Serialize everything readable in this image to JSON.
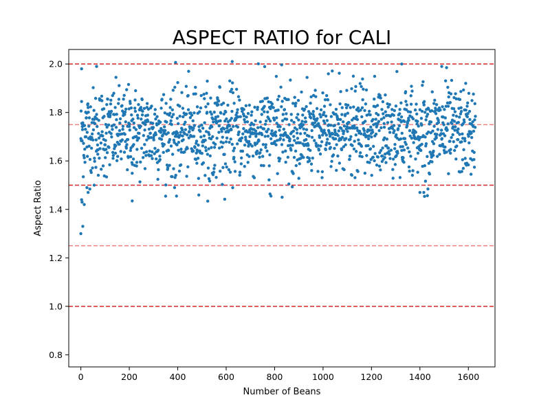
{
  "chart_data": {
    "type": "scatter",
    "title": "ASPECT RATIO for CALI",
    "xlabel": "Number of Beans",
    "ylabel": "Aspect Ratio",
    "xlim": [
      -50,
      1710
    ],
    "ylim": [
      0.75,
      2.06
    ],
    "xticks": [
      0,
      200,
      400,
      600,
      800,
      1000,
      1200,
      1400,
      1600
    ],
    "yticks": [
      0.8,
      1.0,
      1.2,
      1.4,
      1.6,
      1.8,
      2.0
    ],
    "ytick_labels": [
      "0.8",
      "1.0",
      "1.2",
      "1.4",
      "1.6",
      "1.8",
      "2.0"
    ],
    "grid": false,
    "point_color": "#1f77b4",
    "n_points": 1630,
    "points_generation": {
      "mean": 1.72,
      "spread": 0.09,
      "min": 1.43,
      "max": 2.01
    },
    "outliers": [
      {
        "x": 0,
        "y": 1.3
      },
      {
        "x": 3,
        "y": 1.44
      },
      {
        "x": 5,
        "y": 1.43
      },
      {
        "x": 8,
        "y": 1.33
      },
      {
        "x": 14,
        "y": 1.42
      },
      {
        "x": 25,
        "y": 1.49
      },
      {
        "x": 30,
        "y": 1.47
      },
      {
        "x": 55,
        "y": 1.5
      },
      {
        "x": 212,
        "y": 1.435
      },
      {
        "x": 395,
        "y": 1.455
      },
      {
        "x": 785,
        "y": 1.455
      },
      {
        "x": 1400,
        "y": 1.47
      },
      {
        "x": 3,
        "y": 1.98
      },
      {
        "x": 65,
        "y": 1.99
      },
      {
        "x": 625,
        "y": 2.01
      },
      {
        "x": 1325,
        "y": 2.0
      },
      {
        "x": 1490,
        "y": 1.99
      },
      {
        "x": 1510,
        "y": 1.985
      }
    ],
    "reference_lines": [
      {
        "y": 2.0,
        "color": "#d62728",
        "style": "dashed"
      },
      {
        "y": 1.75,
        "color": "#f08080",
        "style": "dashed"
      },
      {
        "y": 1.5,
        "color": "#d62728",
        "style": "dashed"
      },
      {
        "y": 1.25,
        "color": "#f08080",
        "style": "dashed"
      },
      {
        "y": 1.0,
        "color": "#d62728",
        "style": "dashed"
      }
    ]
  }
}
